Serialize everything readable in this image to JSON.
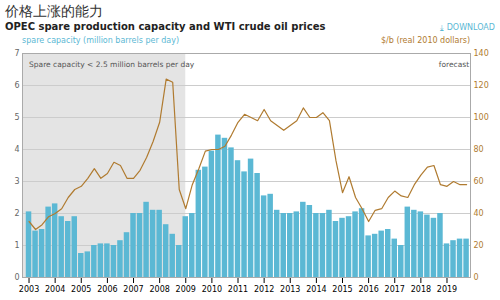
{
  "chart_data": {
    "type": "bar",
    "title": "价格上涨的能力",
    "subtitle": "OPEC spare production capacity and WTI crude oil prices",
    "download_label": "⤓ DOWNLOAD",
    "ylabel": "spare capacity (million barrels per day)",
    "y2label": "$/b (real 2010 dollars)",
    "x": [
      2003,
      2003.25,
      2003.5,
      2003.75,
      2004,
      2004.25,
      2004.5,
      2004.75,
      2005,
      2005.25,
      2005.5,
      2005.75,
      2006,
      2006.25,
      2006.5,
      2006.75,
      2007,
      2007.25,
      2007.5,
      2007.75,
      2008,
      2008.25,
      2008.5,
      2008.75,
      2009,
      2009.25,
      2009.5,
      2009.75,
      2010,
      2010.25,
      2010.5,
      2010.75,
      2011,
      2011.25,
      2011.5,
      2011.75,
      2012,
      2012.25,
      2012.5,
      2012.75,
      2013,
      2013.25,
      2013.5,
      2013.75,
      2014,
      2014.25,
      2014.5,
      2014.75,
      2015,
      2015.25,
      2015.5,
      2015.75,
      2016,
      2016.25,
      2016.5,
      2016.75,
      2017,
      2017.25,
      2017.5,
      2017.75,
      2018,
      2018.25,
      2018.5,
      2018.75,
      2019,
      2019.25,
      2019.5,
      2019.75
    ],
    "xlim": [
      2002.75,
      2019.9
    ],
    "xticks": [
      2003,
      2004,
      2005,
      2006,
      2007,
      2008,
      2009,
      2010,
      2011,
      2012,
      2013,
      2014,
      2015,
      2016,
      2017,
      2018,
      2019
    ],
    "ylim": [
      0,
      7
    ],
    "yticks": [
      0,
      1,
      2,
      3,
      4,
      5,
      6,
      7
    ],
    "y2lim": [
      0,
      140
    ],
    "y2ticks": [
      0,
      20,
      40,
      60,
      80,
      100,
      120,
      140
    ],
    "grid": true,
    "series": [
      {
        "type": "bar",
        "color": "#5bb8d4",
        "values": [
          2.05,
          1.45,
          1.5,
          2.2,
          2.3,
          1.9,
          1.75,
          1.9,
          0.75,
          0.8,
          1.0,
          1.05,
          1.05,
          1.0,
          1.15,
          1.4,
          2.0,
          2.0,
          2.35,
          2.1,
          2.1,
          1.65,
          1.35,
          1.0,
          1.9,
          2.0,
          3.35,
          3.45,
          3.95,
          4.45,
          4.35,
          4.05,
          3.65,
          3.3,
          3.7,
          3.25,
          2.55,
          2.6,
          2.1,
          2.0,
          2.0,
          2.05,
          2.35,
          2.25,
          2.0,
          2.0,
          2.1,
          1.75,
          1.85,
          1.9,
          2.05,
          2.15,
          1.3,
          1.35,
          1.45,
          1.5,
          1.2,
          1.0,
          2.2,
          2.1,
          2.05,
          1.95,
          1.85,
          2.0,
          1.05,
          1.15,
          1.2,
          1.2
        ]
      },
      {
        "type": "line",
        "color": "#b07b30",
        "axis": "y2",
        "values": [
          35,
          30,
          33,
          38,
          40,
          43,
          50,
          55,
          57,
          62,
          68,
          62,
          65,
          72,
          70,
          62,
          62,
          67,
          75,
          85,
          97,
          124,
          122,
          55,
          43,
          58,
          68,
          79,
          80,
          80,
          82,
          89,
          97,
          102,
          100,
          98,
          105,
          98,
          95,
          92,
          95,
          98,
          106,
          100,
          100,
          103,
          98,
          73,
          53,
          63,
          50,
          43,
          35,
          42,
          43,
          50,
          54,
          51,
          50,
          58,
          64,
          69,
          70,
          58,
          57,
          60,
          58,
          58
        ]
      }
    ],
    "shaded_span": {
      "x": [
        2002.75,
        2009.0
      ],
      "color": "#e4e4e4"
    },
    "annotations": [
      {
        "text": "Spare capacity < 2.5 million barrels per day",
        "x": 2003.0,
        "y": 6.75
      },
      {
        "text": "forecast",
        "x": 2019.85,
        "y": 6.75
      }
    ]
  }
}
